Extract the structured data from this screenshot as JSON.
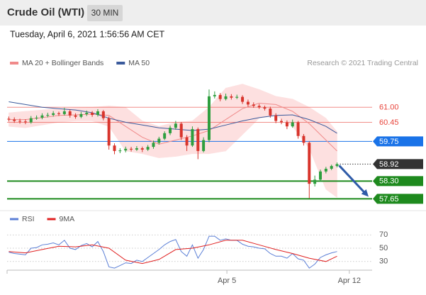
{
  "chart_data": [
    {
      "type": "candlestick",
      "title": "Crude Oil (WTI)",
      "subtitle": "30 MIN",
      "timestamp": "Tuesday, April 6, 2021 1:56:56 AM CET",
      "source": "Research © 2021 Trading Central",
      "xlim": [
        -0.3,
        65.3
      ],
      "ylim": [
        57.4,
        62.2
      ],
      "up_color": "#2e9e3e",
      "down_color": "#d8342c",
      "ohlc": {
        "x": [
          0,
          1,
          2,
          3,
          4,
          5,
          6,
          7,
          8,
          9,
          10,
          11,
          12,
          13,
          14,
          15,
          16,
          17,
          18,
          19,
          20,
          21,
          22,
          23,
          24,
          25,
          26,
          27,
          28,
          29,
          30,
          31,
          32,
          33,
          34,
          35,
          36,
          37,
          38,
          39,
          40,
          41,
          42,
          43,
          44,
          45,
          46,
          47,
          48,
          49,
          50,
          51,
          52,
          53,
          54,
          55,
          56,
          57,
          58,
          59
        ],
        "open": [
          60.58,
          60.55,
          60.5,
          60.48,
          60.45,
          60.6,
          60.62,
          60.7,
          60.72,
          60.78,
          60.75,
          60.85,
          60.7,
          60.65,
          60.75,
          60.8,
          60.72,
          60.85,
          60.6,
          59.6,
          59.4,
          59.42,
          59.48,
          59.45,
          59.5,
          59.45,
          59.55,
          59.7,
          59.85,
          60.05,
          60.25,
          60.4,
          59.9,
          59.6,
          60.2,
          59.4,
          59.8,
          61.4,
          61.45,
          61.3,
          61.4,
          61.35,
          61.38,
          61.2,
          61.1,
          61.05,
          61,
          60.95,
          60.7,
          60.5,
          60.45,
          60.3,
          60.45,
          59.95,
          59.7,
          58.2,
          58.35,
          58.65,
          58.75,
          58.85
        ],
        "high": [
          60.66,
          60.63,
          60.58,
          60.56,
          60.68,
          60.7,
          60.78,
          60.8,
          60.86,
          60.84,
          60.98,
          60.92,
          60.78,
          60.83,
          60.88,
          60.86,
          60.93,
          60.9,
          60.66,
          59.68,
          59.5,
          59.56,
          59.55,
          59.58,
          59.56,
          59.62,
          59.78,
          59.92,
          60.12,
          60.33,
          60.5,
          60.46,
          59.98,
          60.3,
          60.26,
          59.9,
          61.65,
          61.58,
          61.52,
          61.5,
          61.48,
          61.46,
          61.44,
          61.28,
          61.18,
          61.12,
          61.06,
          61.02,
          60.78,
          60.58,
          60.52,
          60.55,
          60.5,
          60.02,
          59.76,
          58.5,
          58.72,
          58.82,
          58.9,
          58.98
        ],
        "low": [
          60.48,
          60.43,
          60.4,
          60.38,
          60.4,
          60.54,
          60.56,
          60.63,
          60.66,
          60.68,
          60.7,
          60.62,
          60.58,
          60.6,
          60.68,
          60.65,
          60.66,
          60.52,
          59.45,
          59.28,
          59.32,
          59.35,
          59.38,
          59.4,
          59.36,
          59.4,
          59.48,
          59.64,
          59.8,
          59.98,
          60.18,
          59.8,
          59.4,
          59.55,
          59.1,
          59.35,
          59.72,
          61.32,
          61.22,
          61.25,
          61.28,
          61.3,
          61.12,
          61.02,
          60.98,
          60.94,
          60.88,
          60.62,
          60.42,
          60.38,
          60.2,
          60.25,
          59.85,
          59.6,
          57.67,
          58.1,
          58.3,
          58.58,
          58.7,
          58.8
        ],
        "close": [
          60.55,
          60.5,
          60.48,
          60.45,
          60.6,
          60.62,
          60.7,
          60.72,
          60.78,
          60.75,
          60.85,
          60.7,
          60.65,
          60.75,
          60.8,
          60.72,
          60.85,
          60.6,
          59.6,
          59.4,
          59.42,
          59.48,
          59.45,
          59.5,
          59.45,
          59.55,
          59.7,
          59.85,
          60.05,
          60.25,
          60.4,
          59.9,
          59.6,
          60.2,
          59.4,
          59.8,
          61.4,
          61.45,
          61.3,
          61.4,
          61.35,
          61.38,
          61.2,
          61.1,
          61.05,
          61,
          60.95,
          60.7,
          60.5,
          60.45,
          60.3,
          60.45,
          59.95,
          59.7,
          58.2,
          58.35,
          58.65,
          58.75,
          58.85,
          58.92
        ]
      },
      "overlay_x": [
        0,
        3,
        6,
        9,
        12,
        15,
        18,
        21,
        24,
        27,
        30,
        33,
        36,
        39,
        42,
        45,
        48,
        51,
        54,
        57,
        59
      ],
      "band_color": "#fde0e0",
      "series": [
        {
          "name": "MA 20 + Bollinger Bands",
          "color": "#f08a8a",
          "values": [
            60.55,
            60.55,
            60.62,
            60.7,
            60.72,
            60.75,
            60.7,
            60.3,
            59.9,
            59.65,
            59.8,
            59.95,
            60.15,
            60.55,
            60.95,
            61.15,
            61.1,
            60.85,
            60.4,
            59.8,
            59.4
          ],
          "upper": [
            60.8,
            60.85,
            60.9,
            60.95,
            60.98,
            61,
            61.05,
            61,
            60.5,
            60.3,
            60.45,
            60.5,
            61,
            61.7,
            61.85,
            61.65,
            61.4,
            61.3,
            61,
            60.6,
            60.1
          ],
          "lower": [
            60.3,
            60.25,
            60.35,
            60.45,
            60.5,
            60.5,
            60.3,
            59.4,
            59.3,
            59.15,
            59.2,
            59.3,
            59.3,
            59.4,
            60,
            60.6,
            60.7,
            60.3,
            59.5,
            58,
            57.7
          ]
        },
        {
          "name": "MA 50",
          "color": "#3a5a9c",
          "values": [
            61.2,
            61.1,
            61,
            60.95,
            60.9,
            60.8,
            60.6,
            60.45,
            60.35,
            60.25,
            60.2,
            60.15,
            60.2,
            60.35,
            60.5,
            60.62,
            60.7,
            60.72,
            60.55,
            60.3,
            60.05
          ]
        }
      ],
      "levels": [
        {
          "value": 61,
          "label": "61.00",
          "color": "#e8453c",
          "line": "thin",
          "boxed": false
        },
        {
          "value": 60.45,
          "label": "60.45",
          "color": "#e8453c",
          "line": "thin",
          "boxed": false
        },
        {
          "value": 59.75,
          "label": "59.75",
          "color": "#1a73e8",
          "line": "thin",
          "boxed": true
        },
        {
          "value": 58.92,
          "label": "58.92",
          "color": "#333333",
          "line": "dotted",
          "boxed": true
        },
        {
          "value": 58.3,
          "label": "58.30",
          "color": "#1e8a1e",
          "line": "thick",
          "boxed": true
        },
        {
          "value": 57.65,
          "label": "57.65",
          "color": "#1e8a1e",
          "line": "thick",
          "boxed": true
        }
      ]
    },
    {
      "type": "line",
      "xlim": [
        -0.3,
        65.3
      ],
      "ylim": [
        18,
        82
      ],
      "yticks": [
        70,
        50,
        30
      ],
      "xticks": [
        {
          "value": 39.2,
          "label": "Apr 5"
        },
        {
          "value": 61.2,
          "label": "Apr 12"
        }
      ],
      "series": [
        {
          "name": "RSI",
          "color": "#5b7fd6",
          "x": [
            0,
            1,
            2,
            3,
            4,
            5,
            6,
            7,
            8,
            9,
            10,
            11,
            12,
            13,
            14,
            15,
            16,
            17,
            18,
            19,
            20,
            21,
            22,
            23,
            24,
            25,
            26,
            27,
            28,
            29,
            30,
            31,
            32,
            33,
            34,
            35,
            36,
            37,
            38,
            39,
            40,
            41,
            42,
            43,
            44,
            45,
            46,
            47,
            48,
            49,
            50,
            51,
            52,
            53,
            54,
            55,
            56,
            57,
            58,
            59
          ],
          "values": [
            44,
            42,
            41,
            40,
            50,
            51,
            55,
            56,
            58,
            55,
            62,
            50,
            48,
            54,
            57,
            52,
            60,
            45,
            22,
            20,
            24,
            28,
            27,
            32,
            30,
            36,
            42,
            48,
            55,
            60,
            63,
            45,
            38,
            55,
            35,
            48,
            68,
            68,
            62,
            64,
            62,
            62,
            56,
            53,
            52,
            50,
            49,
            42,
            38,
            38,
            35,
            42,
            34,
            32,
            20,
            26,
            36,
            40,
            43,
            45
          ]
        },
        {
          "name": "9MA",
          "color": "#e02020",
          "x": [
            0,
            3,
            6,
            9,
            12,
            15,
            18,
            21,
            24,
            27,
            30,
            33,
            36,
            39,
            42,
            45,
            48,
            51,
            54,
            57,
            59
          ],
          "values": [
            45,
            43,
            48,
            53,
            52,
            55,
            50,
            32,
            27,
            33,
            48,
            50,
            55,
            62,
            62,
            55,
            48,
            42,
            35,
            30,
            38
          ]
        }
      ]
    }
  ]
}
